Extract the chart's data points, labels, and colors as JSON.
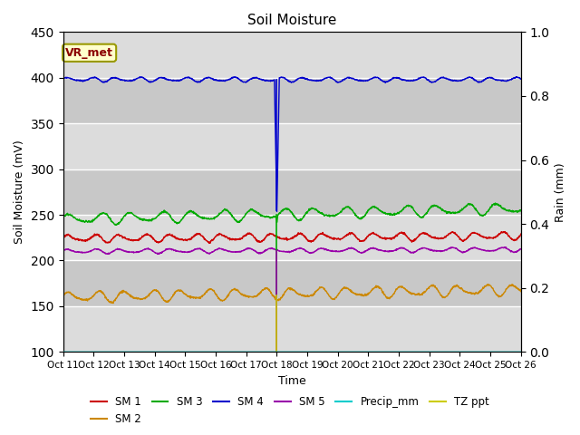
{
  "title": "Soil Moisture",
  "xlabel": "Time",
  "ylabel_left": "Soil Moisture (mV)",
  "ylabel_right": "Rain (mm)",
  "ylim_left": [
    100,
    450
  ],
  "ylim_right": [
    0.0,
    1.0
  ],
  "yticks_left": [
    100,
    150,
    200,
    250,
    300,
    350,
    400,
    450
  ],
  "yticks_right": [
    0.0,
    0.2,
    0.4,
    0.6,
    0.8,
    1.0
  ],
  "annotation_text": "VR_met",
  "annotation_color": "#8B0000",
  "annotation_bg": "#FFFFCC",
  "annotation_border": "#999900",
  "sm1_base": 224,
  "sm2_base": 160,
  "sm3_base": 245,
  "sm4_base": 398,
  "sm5_base": 210,
  "sm1_color": "#CC0000",
  "sm2_color": "#CC8800",
  "sm3_color": "#00AA00",
  "sm4_color": "#0000CC",
  "sm5_color": "#9900AA",
  "precip_color": "#00CCCC",
  "tz_color": "#CCCC00",
  "bg_light": "#DCDCDC",
  "bg_dark": "#C8C8C8",
  "grid_color": "#FFFFFF",
  "x_tick_labels": [
    "Oct 1",
    "1Oct 1",
    "2Oct 1",
    "3Oct 1",
    "4Oct 1",
    "5Oct 1",
    "6Oct 1",
    "7Oct 1",
    "8Oct 1",
    "9Oct 2",
    "0Oct 2",
    "1Oct 2",
    "2Oct 2",
    "3Oct 2",
    "4Oct 2",
    "5Oct 26"
  ],
  "spike_day": 7
}
